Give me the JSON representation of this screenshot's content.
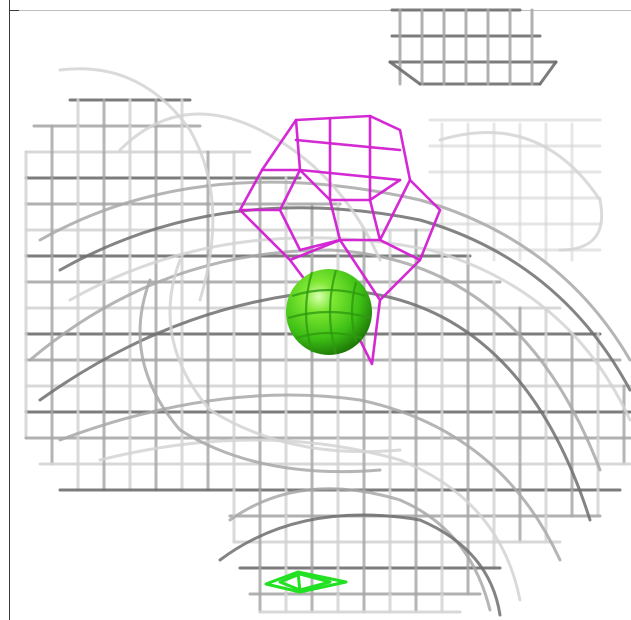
{
  "scene": {
    "description_visible_text": "",
    "colors": {
      "background": "#ffffff",
      "mesh_light": "#d4d4d4",
      "mesh_mid": "#a8a8a8",
      "mesh_dark": "#6e6e6e",
      "magenta_mesh": "#d21fd2",
      "green_sphere": "#3cd21e",
      "green_mesh": "#22e022",
      "frame": "#3a3a3a"
    },
    "objects": [
      {
        "name": "grey-density-mesh",
        "color": "mesh_mid"
      },
      {
        "name": "magenta-density-mesh",
        "color": "magenta_mesh"
      },
      {
        "name": "green-ion-sphere",
        "color": "green_sphere"
      },
      {
        "name": "green-small-mesh",
        "color": "green_mesh"
      }
    ]
  }
}
